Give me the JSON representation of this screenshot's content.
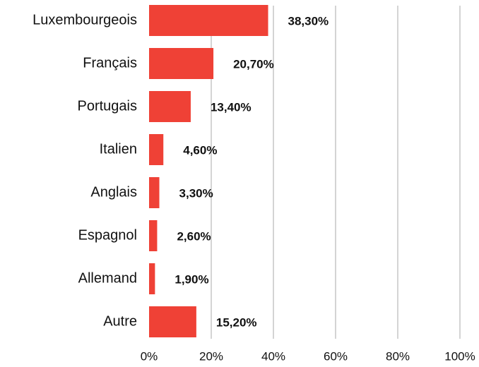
{
  "chart_data": {
    "type": "bar",
    "orientation": "horizontal",
    "categories": [
      "Luxembourgeois",
      "Français",
      "Portugais",
      "Italien",
      "Anglais",
      "Espagnol",
      "Allemand",
      "Autre"
    ],
    "values": [
      38.3,
      20.7,
      13.4,
      4.6,
      3.3,
      2.6,
      1.9,
      15.2
    ],
    "value_labels": [
      "38,30%",
      "20,70%",
      "13,40%",
      "4,60%",
      "3,30%",
      "2,60%",
      "1,90%",
      "15,20%"
    ],
    "color": "#ef4136",
    "xlim": [
      0,
      100
    ],
    "xticks": [
      {
        "value": 0,
        "label": "0%"
      },
      {
        "value": 20,
        "label": "20%"
      },
      {
        "value": 40,
        "label": "40%"
      },
      {
        "value": 60,
        "label": "60%"
      },
      {
        "value": 80,
        "label": "80%"
      },
      {
        "value": 100,
        "label": "100%"
      }
    ],
    "grid": true
  }
}
